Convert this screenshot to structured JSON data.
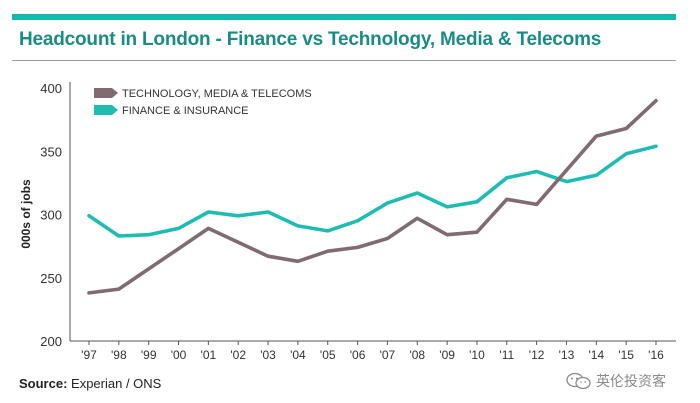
{
  "title": "Headcount in London - Finance vs Technology, Media & Telecoms",
  "source_label": "Source:",
  "source_value": "Experian / ONS",
  "watermark": "英伦投资客",
  "colors": {
    "tmt": "#806b70",
    "finance": "#1dbdb4",
    "brand": "#1a8c86",
    "rule": "#14b8ae"
  },
  "chart_data": {
    "type": "line",
    "title": "Headcount in London - Finance vs Technology, Media & Telecoms",
    "xlabel": "",
    "ylabel": "000s of jobs",
    "ylim": [
      200,
      400
    ],
    "yticks": [
      200,
      250,
      300,
      350,
      400
    ],
    "grid": false,
    "legend_position": "top-left",
    "categories": [
      "'97",
      "'98",
      "'99",
      "'00",
      "'01",
      "'02",
      "'03",
      "'04",
      "'05",
      "'06",
      "'07",
      "'08",
      "'09",
      "'10",
      "'11",
      "'12",
      "'13",
      "'14",
      "'15",
      "'16"
    ],
    "series": [
      {
        "name": "TECHNOLOGY, MEDIA & TELECOMS",
        "color": "#806b70",
        "values": [
          238,
          241,
          257,
          273,
          289,
          278,
          267,
          263,
          271,
          274,
          281,
          297,
          284,
          286,
          312,
          308,
          335,
          362,
          368,
          390
        ]
      },
      {
        "name": "FINANCE & INSURANCE",
        "color": "#1dbdb4",
        "values": [
          299,
          283,
          284,
          289,
          302,
          299,
          302,
          291,
          287,
          295,
          309,
          317,
          306,
          310,
          329,
          334,
          326,
          331,
          348,
          354
        ]
      }
    ]
  }
}
